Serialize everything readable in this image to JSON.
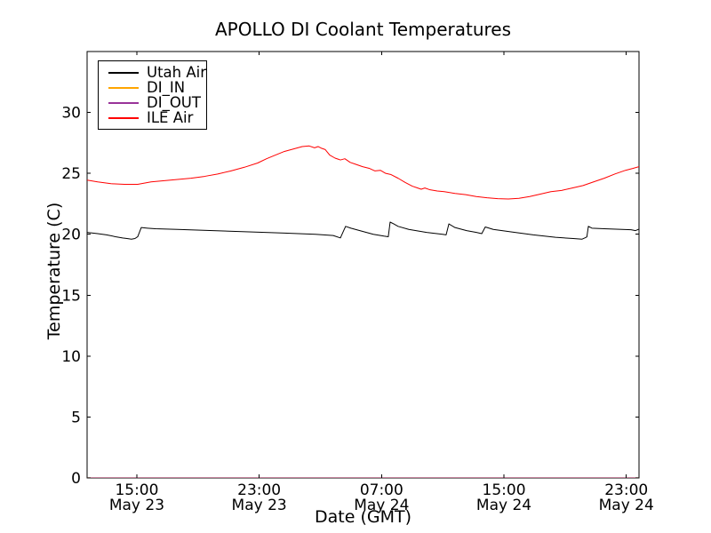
{
  "figure": {
    "background": "#ffffff",
    "frame_color": "#000000"
  },
  "legend": {
    "position": "upper left",
    "entries": [
      {
        "label": "Utah Air",
        "color": "#000000"
      },
      {
        "label": "DI_IN",
        "color": "#ffa500"
      },
      {
        "label": "DI_OUT",
        "color": "#993399"
      },
      {
        "label": "ILE Air",
        "color": "#ff0000"
      }
    ]
  },
  "chart_data": {
    "type": "line",
    "title": "APOLLO DI Coolant Temperatures",
    "xlabel": "Date (GMT)",
    "ylabel": "Temperature (C)",
    "grid": false,
    "x_unit": "hours since May 23 00:00 GMT",
    "xlim": [
      11.75,
      47.83
    ],
    "ylim": [
      0,
      35
    ],
    "yticks": [
      0,
      5,
      10,
      15,
      20,
      25,
      30
    ],
    "xticks": [
      {
        "t": 15,
        "time": "15:00",
        "date": "May 23"
      },
      {
        "t": 23,
        "time": "23:00",
        "date": "May 23"
      },
      {
        "t": 31,
        "time": "07:00",
        "date": "May 24"
      },
      {
        "t": 39,
        "time": "15:00",
        "date": "May 24"
      },
      {
        "t": 47,
        "time": "23:00",
        "date": "May 24"
      }
    ],
    "series": [
      {
        "name": "Utah Air",
        "color": "#000000",
        "width": 1,
        "opacity": 1,
        "points": [
          [
            11.75,
            20.15
          ],
          [
            12.44,
            20.05
          ],
          [
            13.02,
            19.95
          ],
          [
            13.61,
            19.8
          ],
          [
            14.07,
            19.7
          ],
          [
            14.36,
            19.65
          ],
          [
            14.65,
            19.6
          ],
          [
            14.88,
            19.65
          ],
          [
            15.06,
            19.8
          ],
          [
            15.29,
            20.55
          ],
          [
            15.7,
            20.5
          ],
          [
            16.22,
            20.45
          ],
          [
            17.67,
            20.4
          ],
          [
            20.0,
            20.3
          ],
          [
            22.32,
            20.2
          ],
          [
            24.65,
            20.1
          ],
          [
            26.68,
            20.0
          ],
          [
            27.84,
            19.9
          ],
          [
            28.31,
            19.7
          ],
          [
            28.54,
            20.35
          ],
          [
            28.65,
            20.65
          ],
          [
            29.0,
            20.5
          ],
          [
            29.58,
            20.3
          ],
          [
            30.46,
            20.0
          ],
          [
            31.15,
            19.85
          ],
          [
            31.44,
            19.8
          ],
          [
            31.56,
            21.0
          ],
          [
            31.8,
            20.85
          ],
          [
            32.08,
            20.65
          ],
          [
            32.78,
            20.4
          ],
          [
            33.94,
            20.15
          ],
          [
            34.99,
            20.0
          ],
          [
            35.22,
            19.95
          ],
          [
            35.4,
            20.85
          ],
          [
            35.8,
            20.55
          ],
          [
            36.56,
            20.3
          ],
          [
            37.2,
            20.15
          ],
          [
            37.55,
            20.05
          ],
          [
            37.78,
            20.6
          ],
          [
            38.3,
            20.4
          ],
          [
            39.46,
            20.2
          ],
          [
            40.92,
            19.95
          ],
          [
            42.37,
            19.75
          ],
          [
            43.53,
            19.65
          ],
          [
            44.11,
            19.6
          ],
          [
            44.29,
            19.7
          ],
          [
            44.42,
            19.78
          ],
          [
            44.52,
            20.65
          ],
          [
            44.75,
            20.5
          ],
          [
            45.56,
            20.45
          ],
          [
            46.73,
            20.4
          ],
          [
            47.31,
            20.37
          ],
          [
            47.6,
            20.3
          ],
          [
            47.83,
            20.42
          ]
        ]
      },
      {
        "name": "DI_IN",
        "color": "#ffa500",
        "width": 1.2,
        "opacity": 0.8,
        "points": [
          [
            11.75,
            0
          ],
          [
            47.83,
            0
          ]
        ]
      },
      {
        "name": "DI_OUT",
        "color": "#993399",
        "width": 1.2,
        "opacity": 0.8,
        "points": [
          [
            11.75,
            0
          ],
          [
            47.83,
            0
          ]
        ]
      },
      {
        "name": "ILE Air",
        "color": "#ff0000",
        "width": 1,
        "opacity": 1,
        "points": [
          [
            11.75,
            24.45
          ],
          [
            12.44,
            24.3
          ],
          [
            13.31,
            24.15
          ],
          [
            14.19,
            24.1
          ],
          [
            15.06,
            24.1
          ],
          [
            15.93,
            24.3
          ],
          [
            16.8,
            24.4
          ],
          [
            17.67,
            24.5
          ],
          [
            18.54,
            24.6
          ],
          [
            19.42,
            24.75
          ],
          [
            20.29,
            24.95
          ],
          [
            21.16,
            25.2
          ],
          [
            22.03,
            25.5
          ],
          [
            22.9,
            25.85
          ],
          [
            23.48,
            26.2
          ],
          [
            24.06,
            26.5
          ],
          [
            24.65,
            26.8
          ],
          [
            25.23,
            27.0
          ],
          [
            25.81,
            27.2
          ],
          [
            26.27,
            27.25
          ],
          [
            26.62,
            27.1
          ],
          [
            26.85,
            27.2
          ],
          [
            27.09,
            27.05
          ],
          [
            27.32,
            26.95
          ],
          [
            27.61,
            26.5
          ],
          [
            27.96,
            26.25
          ],
          [
            28.31,
            26.1
          ],
          [
            28.6,
            26.2
          ],
          [
            28.95,
            25.9
          ],
          [
            29.3,
            25.75
          ],
          [
            29.76,
            25.55
          ],
          [
            30.22,
            25.4
          ],
          [
            30.57,
            25.2
          ],
          [
            30.92,
            25.25
          ],
          [
            31.27,
            25.0
          ],
          [
            31.62,
            24.9
          ],
          [
            32.08,
            24.6
          ],
          [
            32.55,
            24.25
          ],
          [
            33.01,
            23.95
          ],
          [
            33.36,
            23.8
          ],
          [
            33.59,
            23.7
          ],
          [
            33.83,
            23.8
          ],
          [
            34.17,
            23.65
          ],
          [
            34.64,
            23.55
          ],
          [
            35.1,
            23.5
          ],
          [
            35.8,
            23.35
          ],
          [
            36.5,
            23.25
          ],
          [
            37.19,
            23.1
          ],
          [
            37.89,
            23.0
          ],
          [
            38.59,
            22.92
          ],
          [
            39.29,
            22.9
          ],
          [
            39.98,
            22.95
          ],
          [
            40.68,
            23.1
          ],
          [
            41.38,
            23.3
          ],
          [
            42.07,
            23.5
          ],
          [
            42.77,
            23.6
          ],
          [
            43.47,
            23.8
          ],
          [
            44.17,
            24.0
          ],
          [
            44.86,
            24.3
          ],
          [
            45.56,
            24.6
          ],
          [
            46.26,
            24.95
          ],
          [
            46.95,
            25.25
          ],
          [
            47.42,
            25.4
          ],
          [
            47.83,
            25.55
          ]
        ]
      }
    ]
  }
}
